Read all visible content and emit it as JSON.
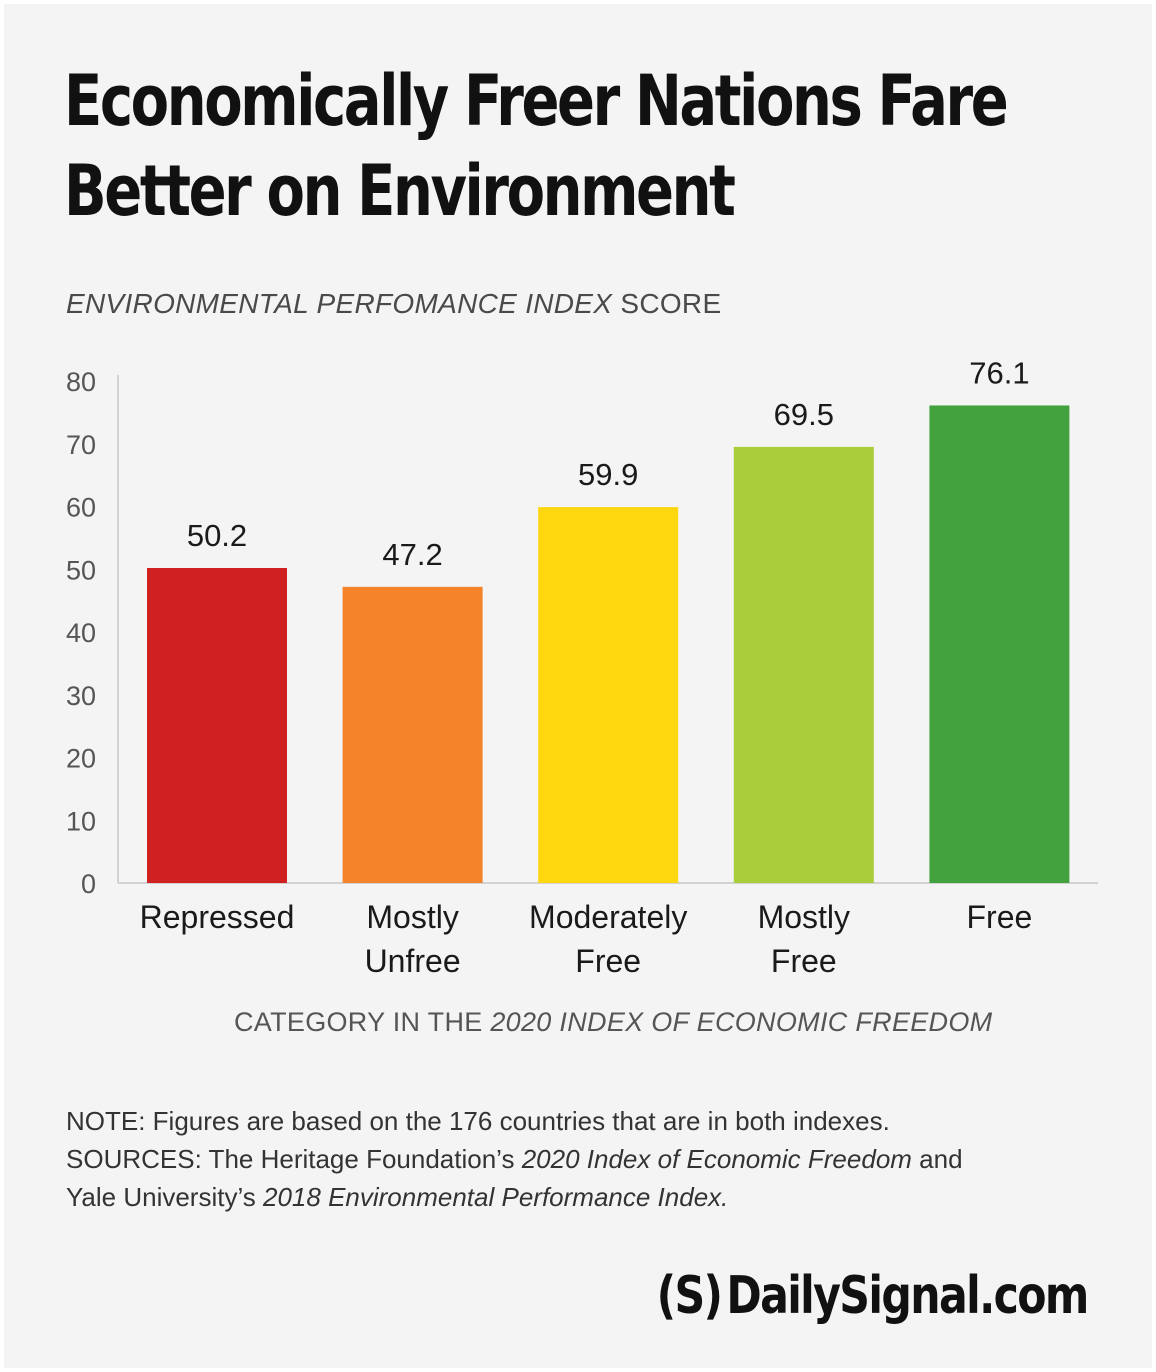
{
  "title_line1": "Economically Freer Nations Fare",
  "title_line2": "Better on Environment",
  "subtitle_italic": "ENVIRONMENTAL PERFOMANCE INDEX",
  "subtitle_regular": " SCORE",
  "xaxis_title_regular": "CATEGORY IN THE ",
  "xaxis_title_italic": "2020 INDEX OF ECONOMIC FREEDOM",
  "notes": {
    "line1": "NOTE:  Figures are based on the 176 countries that are in both indexes.",
    "line2_a": "SOURCES: The Heritage Foundation’s ",
    "line2_b": "2020 Index of Economic Freedom",
    "line2_c": " and",
    "line3_a": "Yale University’s ",
    "line3_b": "2018 Environmental Performance Index."
  },
  "logo": {
    "mark": "(S)",
    "text": "DailySignal.com"
  },
  "chart_data": {
    "type": "bar",
    "title": "Economically Freer Nations Fare Better on Environment",
    "ylabel": "ENVIRONMENTAL PERFOMANCE INDEX SCORE",
    "xlabel": "CATEGORY IN THE 2020 INDEX OF ECONOMIC FREEDOM",
    "categories": [
      [
        "Repressed"
      ],
      [
        "Mostly",
        "Unfree"
      ],
      [
        "Moderately",
        "Free"
      ],
      [
        "Mostly",
        "Free"
      ],
      [
        "Free"
      ]
    ],
    "values": [
      50.2,
      47.2,
      59.9,
      69.5,
      76.1
    ],
    "value_labels": [
      "50.2",
      "47.2",
      "59.9",
      "69.5",
      "76.1"
    ],
    "colors": [
      "#cf2121",
      "#f5832a",
      "#fed70f",
      "#a9ce3a",
      "#43a23d"
    ],
    "ylim": [
      0,
      80
    ],
    "yticks": [
      0,
      10,
      20,
      30,
      40,
      50,
      60,
      70,
      80
    ],
    "grid": false,
    "legend": "none"
  }
}
